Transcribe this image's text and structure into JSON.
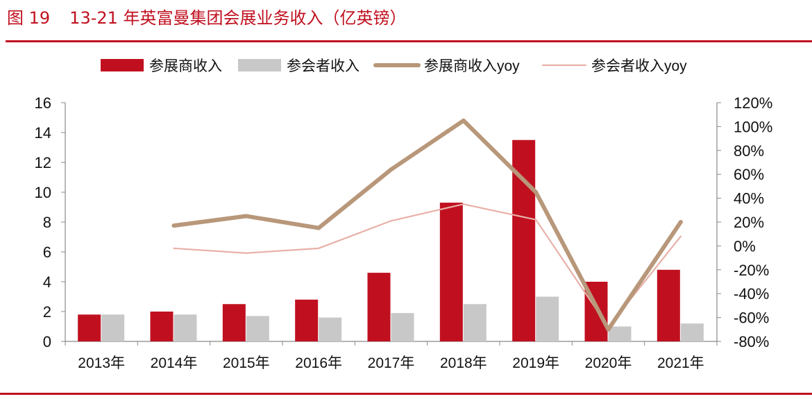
{
  "title": {
    "figure_label": "图 19",
    "text": "13-21 年英富曼集团会展业务收入（亿英镑）"
  },
  "colors": {
    "exhibitor_bar": "#c0101f",
    "attendee_bar": "#c8c8c8",
    "exhibitor_yoy_line": "#b8977a",
    "attendee_yoy_line": "#e8b0a8",
    "rule": "#c0101f"
  },
  "chart_data": {
    "type": "bar",
    "categories": [
      "2013年",
      "2014年",
      "2015年",
      "2016年",
      "2017年",
      "2018年",
      "2019年",
      "2020年",
      "2021年"
    ],
    "series": [
      {
        "name": "参展商收入",
        "type": "bar",
        "axis": "left",
        "values": [
          1.8,
          2.0,
          2.5,
          2.8,
          4.6,
          9.3,
          13.5,
          4.0,
          4.8
        ]
      },
      {
        "name": "参会者收入",
        "type": "bar",
        "axis": "left",
        "values": [
          1.8,
          1.8,
          1.7,
          1.6,
          1.9,
          2.5,
          3.0,
          1.0,
          1.2
        ]
      },
      {
        "name": "参展商收入yoy",
        "type": "line",
        "axis": "right",
        "values": [
          null,
          17,
          25,
          15,
          64,
          105,
          45,
          -70,
          20
        ]
      },
      {
        "name": "参会者收入yoy",
        "type": "line",
        "axis": "right",
        "values": [
          null,
          -2,
          -6,
          -2,
          21,
          35,
          22,
          -68,
          8
        ]
      }
    ],
    "left_axis": {
      "ylim": [
        0,
        16
      ],
      "ticks": [
        "0",
        "2",
        "4",
        "6",
        "8",
        "10",
        "12",
        "14",
        "16"
      ]
    },
    "right_axis": {
      "ylim": [
        -80,
        120
      ],
      "ticks": [
        "-80%",
        "-60%",
        "-40%",
        "-20%",
        "0%",
        "20%",
        "40%",
        "60%",
        "80%",
        "100%",
        "120%"
      ]
    },
    "legend_position": "top",
    "grid": false
  }
}
